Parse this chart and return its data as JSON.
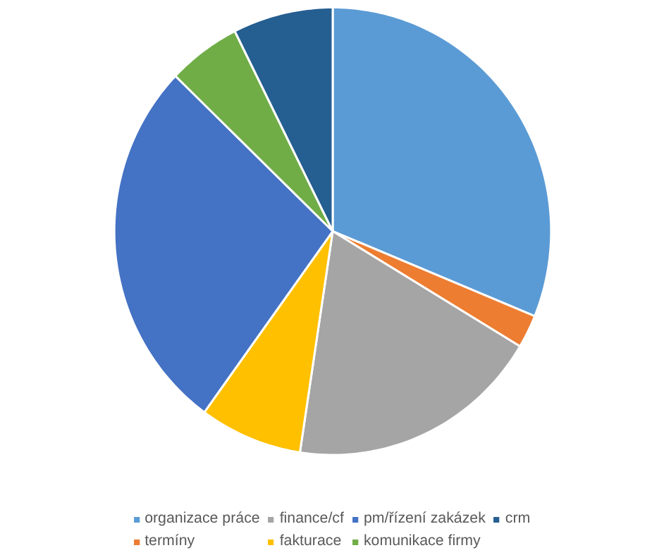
{
  "chart_data": {
    "type": "pie",
    "categories": [
      "organizace práce",
      "termíny",
      "finance/cf",
      "fakturace",
      "pm/řízení zakázek",
      "komunikace firmy",
      "crm"
    ],
    "values": [
      31.2,
      2.4,
      18.8,
      7.6,
      27.2,
      5.4,
      7.4
    ],
    "colors": [
      "#5b9bd5",
      "#ed7d31",
      "#a5a5a5",
      "#ffc000",
      "#4472c4",
      "#70ad47",
      "#255e91"
    ],
    "legend": "bottom"
  }
}
